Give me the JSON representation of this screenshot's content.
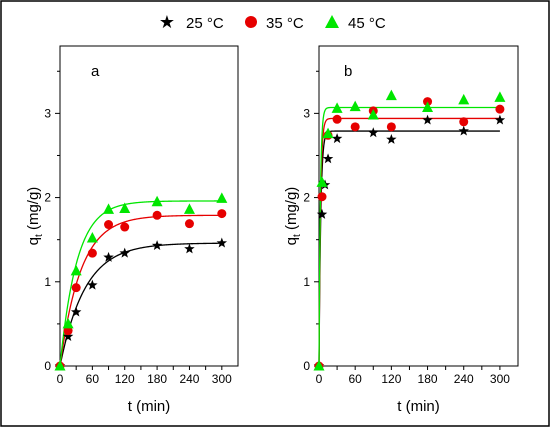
{
  "legend": {
    "placement": "top-center",
    "entries": [
      {
        "label": "25 °C",
        "marker": "star",
        "color": "#000000"
      },
      {
        "label": "35 °C",
        "marker": "circle",
        "color": "#e60000"
      },
      {
        "label": "45 °C",
        "marker": "triangle",
        "color": "#00e600"
      }
    ]
  },
  "chart_data": [
    {
      "type": "scatter",
      "panel_label": "a",
      "xlabel": "t (min)",
      "ylabel": "q",
      "ylabel_sub": "t",
      "ylabel_unit": "(mg/g)",
      "xlim": [
        0,
        330
      ],
      "ylim": [
        0,
        3.8
      ],
      "xticks": [
        0,
        30,
        60,
        90,
        120,
        150,
        180,
        210,
        240,
        270,
        300
      ],
      "xtick_labels": [
        "0",
        "30",
        "60",
        "90",
        "120",
        "150",
        "180",
        "210",
        "240",
        "270",
        "300"
      ],
      "yticks": [
        0,
        1,
        2,
        3
      ],
      "ytick_labels": [
        "0",
        "1",
        "2",
        "3"
      ],
      "grid": false,
      "series": [
        {
          "name": "25 °C",
          "color": "#000000",
          "marker": "star",
          "x": [
            0,
            15,
            30,
            60,
            90,
            120,
            180,
            240,
            300
          ],
          "y": [
            0,
            0.35,
            0.64,
            0.96,
            1.29,
            1.34,
            1.43,
            1.39,
            1.46
          ],
          "fit_qe": 1.46,
          "fit_k": 0.0215
        },
        {
          "name": "35 °C",
          "color": "#e60000",
          "marker": "circle",
          "x": [
            0,
            15,
            30,
            60,
            90,
            120,
            180,
            240,
            300
          ],
          "y": [
            0,
            0.42,
            0.93,
            1.34,
            1.68,
            1.65,
            1.79,
            1.69,
            1.81
          ],
          "fit_qe": 1.79,
          "fit_k": 0.026
        },
        {
          "name": "45 °C",
          "color": "#00e600",
          "marker": "triangle",
          "x": [
            0,
            15,
            30,
            60,
            90,
            120,
            180,
            240,
            300
          ],
          "y": [
            0,
            0.5,
            1.13,
            1.52,
            1.86,
            1.87,
            1.95,
            1.86,
            1.99
          ],
          "fit_qe": 1.96,
          "fit_k": 0.032
        }
      ]
    },
    {
      "type": "scatter",
      "panel_label": "b",
      "xlabel": "t (min)",
      "ylabel": "q",
      "ylabel_sub": "t",
      "ylabel_unit": "(mg/g)",
      "xlim": [
        0,
        330
      ],
      "ylim": [
        0,
        3.8
      ],
      "xticks": [
        0,
        30,
        60,
        90,
        120,
        150,
        180,
        210,
        240,
        270,
        300
      ],
      "xtick_labels": [
        "0",
        "30",
        "60",
        "90",
        "120",
        "150",
        "180",
        "210",
        "240",
        "270",
        "300"
      ],
      "yticks": [
        0,
        1,
        2,
        3
      ],
      "ytick_labels": [
        "0",
        "1",
        "2",
        "3"
      ],
      "grid": false,
      "series": [
        {
          "name": "25 °C",
          "color": "#000000",
          "marker": "star",
          "x": [
            0,
            5,
            10,
            15,
            30,
            90,
            120,
            180,
            240,
            300
          ],
          "y": [
            0,
            1.8,
            2.15,
            2.46,
            2.7,
            2.77,
            2.69,
            2.92,
            2.79,
            2.92
          ],
          "fit_qe": 2.79,
          "fit_k": 0.35
        },
        {
          "name": "35 °C",
          "color": "#e60000",
          "marker": "circle",
          "x": [
            0,
            5,
            15,
            30,
            60,
            90,
            120,
            180,
            240,
            300
          ],
          "y": [
            0,
            2.01,
            2.74,
            2.93,
            2.84,
            3.03,
            2.84,
            3.14,
            2.9,
            3.05
          ],
          "fit_qe": 2.94,
          "fit_k": 0.4
        },
        {
          "name": "45 °C",
          "color": "#00e600",
          "marker": "triangle",
          "x": [
            0,
            5,
            15,
            30,
            60,
            90,
            120,
            180,
            240,
            300
          ],
          "y": [
            0,
            2.18,
            2.76,
            3.06,
            3.08,
            2.98,
            3.21,
            3.07,
            3.16,
            3.19
          ],
          "fit_qe": 3.07,
          "fit_k": 0.45
        }
      ]
    }
  ]
}
